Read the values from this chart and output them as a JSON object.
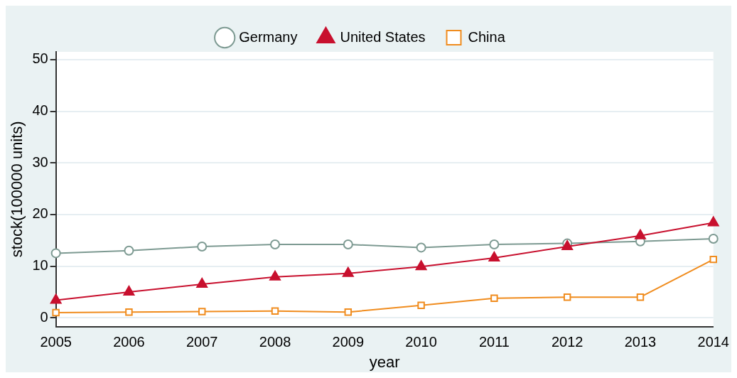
{
  "chart_data": {
    "type": "line",
    "xlabel": "year",
    "ylabel": "stock(100000 units)",
    "categories": [
      "2005",
      "2006",
      "2007",
      "2008",
      "2009",
      "2010",
      "2011",
      "2012",
      "2013",
      "2014"
    ],
    "series": [
      {
        "name": "Germany",
        "color": "#7d9a92",
        "marker": "circle",
        "values": [
          12.5,
          13.0,
          13.8,
          14.2,
          14.2,
          13.6,
          14.2,
          14.4,
          14.8,
          15.3
        ]
      },
      {
        "name": "United States",
        "color": "#c8102e",
        "marker": "triangle",
        "values": [
          3.4,
          5.0,
          6.5,
          7.9,
          8.6,
          9.9,
          11.6,
          13.8,
          15.9,
          18.4
        ]
      },
      {
        "name": "China",
        "color": "#f08c1e",
        "marker": "square",
        "values": [
          1.0,
          1.1,
          1.2,
          1.3,
          1.1,
          2.4,
          3.8,
          4.0,
          4.0,
          11.3
        ]
      }
    ],
    "ylim": [
      -1.7,
      51.5
    ],
    "yticks": [
      0,
      10,
      20,
      30,
      40,
      50
    ],
    "grid": "y",
    "legend": "top"
  }
}
